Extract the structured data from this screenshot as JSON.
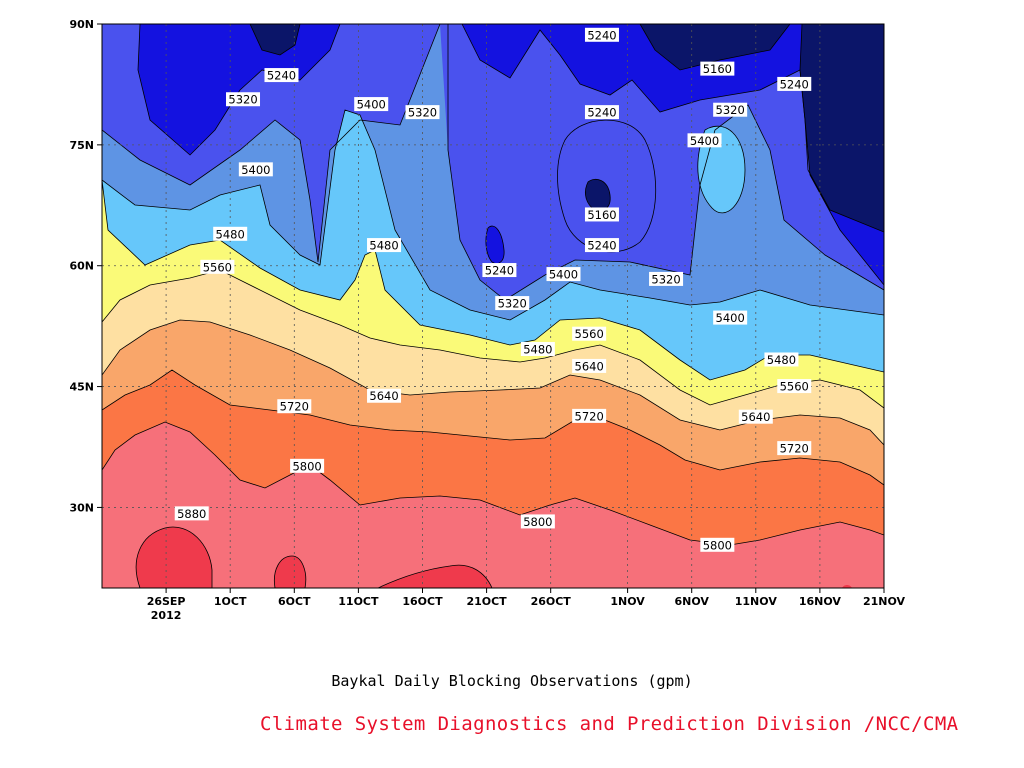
{
  "chart_data": {
    "type": "contour",
    "title": "Baykal Daily Blocking Observations (gpm)",
    "credit": "Climate System Diagnostics and Prediction Division /NCC/CMA",
    "x_axis": {
      "ticks": [
        {
          "label": "26SEP",
          "sub": "2012",
          "value": "2012-09-26"
        },
        {
          "label": "1OCT",
          "value": "2012-10-01"
        },
        {
          "label": "6OCT",
          "value": "2012-10-06"
        },
        {
          "label": "11OCT",
          "value": "2012-10-11"
        },
        {
          "label": "16OCT",
          "value": "2012-10-16"
        },
        {
          "label": "21OCT",
          "value": "2012-10-21"
        },
        {
          "label": "26OCT",
          "value": "2012-10-26"
        },
        {
          "label": "1NOV",
          "value": "2012-11-01"
        },
        {
          "label": "6NOV",
          "value": "2012-11-06"
        },
        {
          "label": "11NOV",
          "value": "2012-11-11"
        },
        {
          "label": "16NOV",
          "value": "2012-11-16"
        },
        {
          "label": "21NOV",
          "value": "2012-11-21"
        }
      ],
      "range": [
        "2012-09-21",
        "2012-11-21"
      ]
    },
    "y_axis": {
      "ticks": [
        {
          "label": "30N",
          "value": 30
        },
        {
          "label": "45N",
          "value": 45
        },
        {
          "label": "60N",
          "value": 60
        },
        {
          "label": "75N",
          "value": 75
        },
        {
          "label": "90N",
          "value": 90
        }
      ],
      "range": [
        20,
        90
      ]
    },
    "grid": true,
    "levels": [
      5160,
      5240,
      5320,
      5400,
      5480,
      5560,
      5640,
      5720,
      5800,
      5880
    ],
    "colors": {
      "below_5160": "#0b1569",
      "5160_5240": "#1412e0",
      "5240_5320": "#4a52ee",
      "5320_5400": "#5e94e4",
      "5400_5480": "#66c7fa",
      "5480_5560": "#fafa78",
      "5560_5640": "#fee0a2",
      "5640_5720": "#f9a66a",
      "5720_5800": "#fb7645",
      "5800_5880": "#f6707a",
      "above_5880": "#ef3a4c"
    },
    "contour_labels": [
      {
        "text": "5240",
        "date": "2012-10-05",
        "lat": 83.6
      },
      {
        "text": "5320",
        "date": "2012-10-02",
        "lat": 80.6
      },
      {
        "text": "5400",
        "date": "2012-10-12",
        "lat": 80.0
      },
      {
        "text": "5320",
        "date": "2012-10-16",
        "lat": 79.0
      },
      {
        "text": "5400",
        "date": "2012-10-03",
        "lat": 71.9
      },
      {
        "text": "5480",
        "date": "2012-10-01",
        "lat": 63.9
      },
      {
        "text": "5560",
        "date": "2012-09-30",
        "lat": 59.8
      },
      {
        "text": "5480",
        "date": "2012-10-13",
        "lat": 62.5
      },
      {
        "text": "5240",
        "date": "2012-10-30",
        "lat": 88.6
      },
      {
        "text": "5160",
        "date": "2012-11-08",
        "lat": 84.4
      },
      {
        "text": "5240",
        "date": "2012-11-14",
        "lat": 82.5
      },
      {
        "text": "5320",
        "date": "2012-11-09",
        "lat": 79.3
      },
      {
        "text": "5240",
        "date": "2012-10-30",
        "lat": 79.0
      },
      {
        "text": "5400",
        "date": "2012-11-07",
        "lat": 75.5
      },
      {
        "text": "5160",
        "date": "2012-10-30",
        "lat": 66.3
      },
      {
        "text": "5240",
        "date": "2012-10-30",
        "lat": 62.5
      },
      {
        "text": "5240",
        "date": "2012-10-22",
        "lat": 59.4
      },
      {
        "text": "5400",
        "date": "2012-10-27",
        "lat": 58.9
      },
      {
        "text": "5320",
        "date": "2012-11-04",
        "lat": 58.3
      },
      {
        "text": "5320",
        "date": "2012-10-23",
        "lat": 55.3
      },
      {
        "text": "5400",
        "date": "2012-11-09",
        "lat": 53.5
      },
      {
        "text": "5560",
        "date": "2012-10-29",
        "lat": 51.5
      },
      {
        "text": "5480",
        "date": "2012-10-25",
        "lat": 49.6
      },
      {
        "text": "5480",
        "date": "2012-11-13",
        "lat": 48.3
      },
      {
        "text": "5640",
        "date": "2012-10-29",
        "lat": 47.5
      },
      {
        "text": "5560",
        "date": "2012-11-14",
        "lat": 45.0
      },
      {
        "text": "5640",
        "date": "2012-10-13",
        "lat": 43.8
      },
      {
        "text": "5720",
        "date": "2012-10-06",
        "lat": 42.5
      },
      {
        "text": "5720",
        "date": "2012-10-29",
        "lat": 41.3
      },
      {
        "text": "5640",
        "date": "2012-11-11",
        "lat": 41.2
      },
      {
        "text": "5720",
        "date": "2012-11-14",
        "lat": 37.3
      },
      {
        "text": "5800",
        "date": "2012-10-07",
        "lat": 35.1
      },
      {
        "text": "5880",
        "date": "2012-09-28",
        "lat": 29.2
      },
      {
        "text": "5800",
        "date": "2012-10-25",
        "lat": 28.2
      },
      {
        "text": "5800",
        "date": "2012-11-08",
        "lat": 25.3
      }
    ]
  }
}
